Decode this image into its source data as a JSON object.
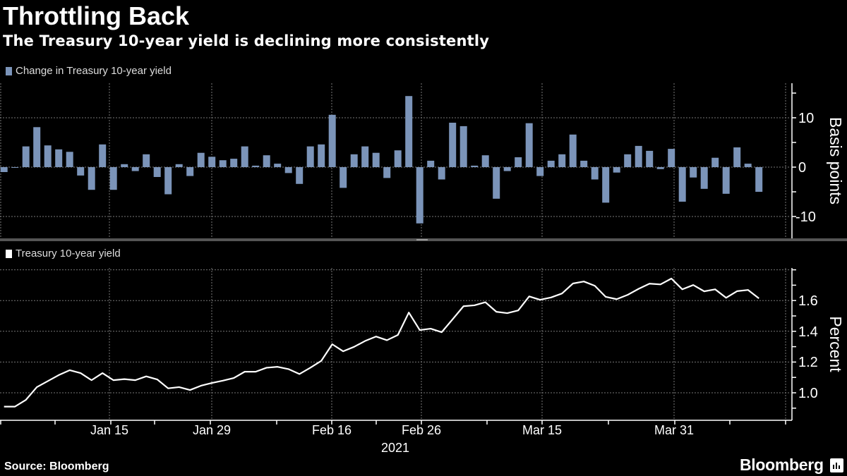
{
  "title": "Throttling Back",
  "subtitle": "The Treasury 10-year yield is declining more consistently",
  "source": "Source: Bloomberg",
  "logo_text": "Bloomberg",
  "chart_data": [
    {
      "type": "bar",
      "legend": "Change in Treasury 10-year yield",
      "ylabel": "Basis points",
      "y_ticks": [
        "10",
        "0",
        "-10"
      ],
      "ylim": [
        -14,
        17
      ],
      "grid": true,
      "color": "#7b94b9",
      "x_tick_labels": [
        "Jan 15",
        "Jan 29",
        "Feb 16",
        "Feb 26",
        "Mar 15",
        "Mar 31"
      ],
      "year_label": "2021",
      "values": [
        -1,
        0,
        4.2,
        8.1,
        4.4,
        3.6,
        3.1,
        -1.7,
        -4.6,
        4.6,
        -4.6,
        0.6,
        -0.8,
        2.6,
        -2.0,
        -5.5,
        0.6,
        -1.8,
        2.9,
        2.1,
        1.4,
        1.7,
        4.2,
        0.3,
        2.4,
        0.7,
        -1.2,
        -3.4,
        4.2,
        4.6,
        10.6,
        -4.2,
        2.6,
        4.2,
        2.9,
        -2.2,
        3.4,
        14.4,
        -11.4,
        1.3,
        -2.5,
        9.0,
        8.3,
        0.3,
        2.4,
        -6.4,
        -0.8,
        2.0,
        8.9,
        -1.8,
        1.3,
        2.6,
        6.6,
        1.3,
        -2.5,
        -7.2,
        -1.1,
        2.6,
        4.3,
        3.3,
        -0.4,
        3.7,
        -7.0,
        -2.1,
        -4.4,
        1.9,
        -5.4,
        4.0,
        0.7,
        -5.0
      ]
    },
    {
      "type": "line",
      "legend": "Treasury 10-year yield",
      "ylabel": "Percent",
      "y_ticks": [
        "1.6",
        "1.4",
        "1.2",
        "1.0"
      ],
      "ylim": [
        0.83,
        1.82
      ],
      "grid": true,
      "color": "#ffffff",
      "x_tick_labels": [
        "Jan 15",
        "Jan 29",
        "Feb 16",
        "Feb 26",
        "Mar 15",
        "Mar 31"
      ],
      "year_label": "2021",
      "values": [
        0.91,
        0.91,
        0.954,
        1.037,
        1.076,
        1.115,
        1.147,
        1.128,
        1.082,
        1.128,
        1.082,
        1.089,
        1.082,
        1.107,
        1.087,
        1.029,
        1.037,
        1.018,
        1.046,
        1.064,
        1.079,
        1.096,
        1.137,
        1.137,
        1.163,
        1.169,
        1.154,
        1.122,
        1.163,
        1.208,
        1.316,
        1.27,
        1.299,
        1.337,
        1.366,
        1.342,
        1.376,
        1.522,
        1.408,
        1.417,
        1.394,
        1.478,
        1.563,
        1.569,
        1.589,
        1.527,
        1.518,
        1.536,
        1.627,
        1.605,
        1.62,
        1.646,
        1.711,
        1.724,
        1.696,
        1.624,
        1.609,
        1.637,
        1.676,
        1.71,
        1.705,
        1.743,
        1.673,
        1.701,
        1.66,
        1.673,
        1.618,
        1.661,
        1.669,
        1.614
      ]
    }
  ]
}
